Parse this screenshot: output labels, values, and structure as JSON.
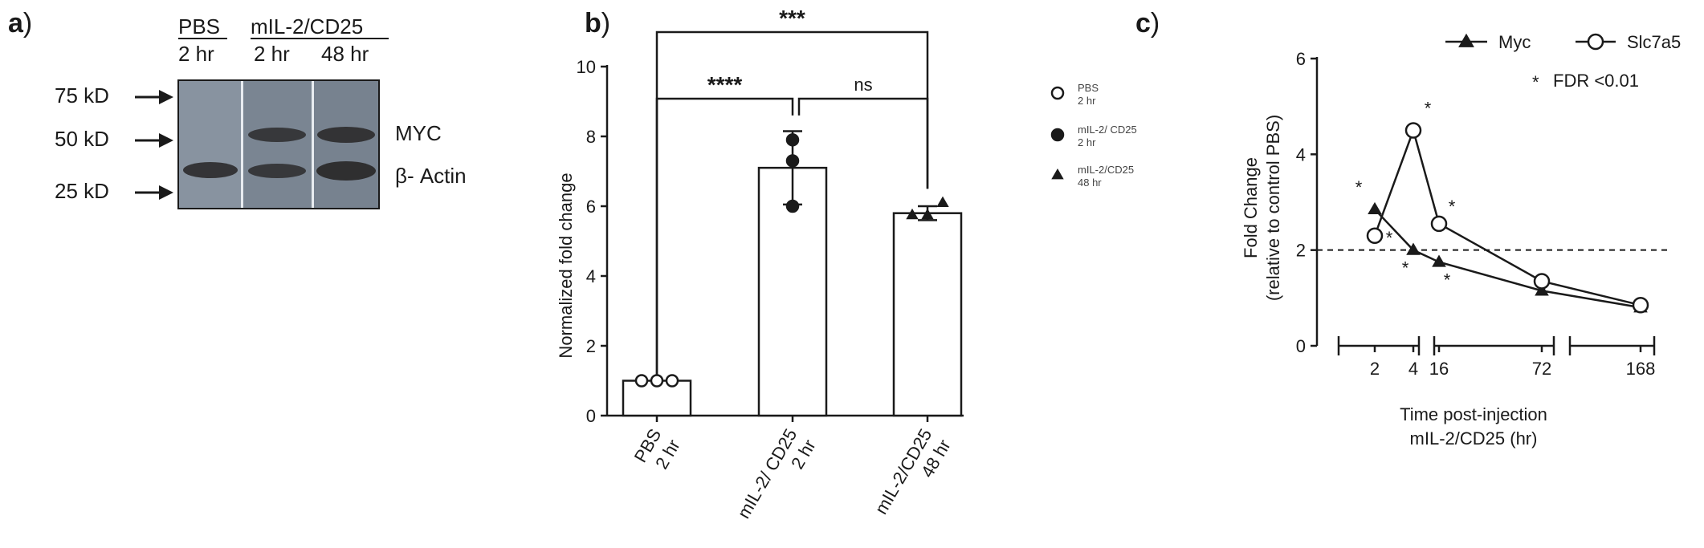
{
  "panels": {
    "a": {
      "letter": "a",
      "paren": ")"
    },
    "b": {
      "letter": "b",
      "paren": ")"
    },
    "c": {
      "letter": "c",
      "paren": ")"
    }
  },
  "blot": {
    "lanes_header": {
      "group1": "PBS",
      "group2": "mIL-2/CD25"
    },
    "lane_times": [
      "2 hr",
      "2 hr",
      "48 hr"
    ],
    "mw_markers": [
      "75 kD",
      "50 kD",
      "25 kD"
    ],
    "bands": [
      "MYC",
      "β- Actin"
    ]
  },
  "chart_data": [
    {
      "type": "bar",
      "panel": "b",
      "categories": [
        "PBS\n2 hr",
        "mIL-2/ CD25\n2 hr",
        "mIL-2/CD25\n48 hr"
      ],
      "category_lines": [
        [
          "PBS",
          "2 hr"
        ],
        [
          "mIL-2/ CD25",
          "2 hr"
        ],
        [
          "mIL-2/CD25",
          "48 hr"
        ]
      ],
      "values": [
        1.0,
        7.1,
        5.8
      ],
      "error_sd": [
        0.0,
        1.05,
        0.2
      ],
      "points": [
        [
          1.0,
          1.0,
          1.0
        ],
        [
          7.3,
          6.0,
          7.9
        ],
        [
          5.75,
          5.75,
          6.1
        ]
      ],
      "markers": [
        "circle-open",
        "circle-filled",
        "triangle-filled"
      ],
      "ylabel": "Normalized fold change",
      "ylim": [
        0,
        10
      ],
      "yticks": [
        0,
        2,
        4,
        6,
        8,
        10
      ],
      "significance": [
        {
          "from": 0,
          "to": 1,
          "label": "****"
        },
        {
          "from": 1,
          "to": 2,
          "label": "ns"
        },
        {
          "from": 0,
          "to": 2,
          "label": "***"
        }
      ],
      "legend": [
        {
          "marker": "circle-open",
          "lines": [
            "PBS",
            "2 hr"
          ]
        },
        {
          "marker": "circle-filled",
          "lines": [
            "mIL-2/ CD25",
            "2 hr"
          ]
        },
        {
          "marker": "triangle-filled",
          "lines": [
            "mIL-2/CD25",
            "48 hr"
          ]
        }
      ]
    },
    {
      "type": "line",
      "panel": "c",
      "x_tick_labels": [
        "2",
        "4",
        "16",
        "72",
        "168"
      ],
      "series": [
        {
          "name": "Myc",
          "marker": "triangle-filled",
          "x": [
            2,
            4,
            16,
            72,
            168
          ],
          "y": [
            2.85,
            2.0,
            1.75,
            1.15,
            0.8
          ],
          "starred": [
            true,
            true,
            true,
            false,
            false
          ]
        },
        {
          "name": "Slc7a5",
          "marker": "circle-open",
          "x": [
            2,
            4,
            16,
            72,
            168
          ],
          "y": [
            2.3,
            4.5,
            2.55,
            1.35,
            0.85
          ],
          "starred": [
            true,
            true,
            true,
            false,
            false
          ]
        }
      ],
      "reference_line": {
        "y": 2,
        "style": "dashed"
      },
      "ylabel_lines": [
        "Fold Change",
        "(relative to control PBS)"
      ],
      "xlabel_lines": [
        "Time post-injection",
        "mIL-2/CD25 (hr)"
      ],
      "ylim": [
        0,
        6
      ],
      "yticks": [
        0,
        2,
        4,
        6
      ],
      "annotation": {
        "star": "*",
        "text": "FDR <0.01"
      }
    }
  ]
}
